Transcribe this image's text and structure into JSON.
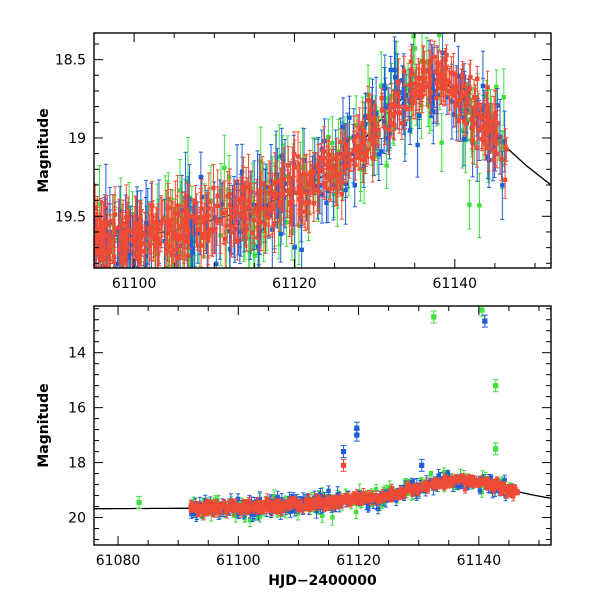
{
  "chart_data": [
    {
      "type": "scatter",
      "panel": "top",
      "ylabel": "Magnitude",
      "xlabel": "",
      "xlim": [
        61095,
        61152
      ],
      "ylim": [
        19.83,
        18.33
      ],
      "y_inverted": true,
      "x_ticks": [
        61100,
        61120,
        61140
      ],
      "x_tick_labels": [
        "61100",
        "61120",
        "61140"
      ],
      "y_ticks": [
        18.5,
        19,
        19.5
      ],
      "y_tick_labels": [
        "18.5",
        "19",
        "19.5"
      ],
      "series_colors": [
        "#1f5fd6",
        "#ef4b36",
        "#3ee03e"
      ],
      "model_curve": {
        "color": "#000000",
        "x": [
          61095,
          61100,
          61105,
          61110,
          61115,
          61120,
          61125,
          61128,
          61131,
          61134,
          61136,
          61138,
          61140,
          61143,
          61146,
          61149,
          61152
        ],
        "y": [
          19.66,
          19.63,
          19.59,
          19.52,
          19.45,
          19.35,
          19.2,
          19.05,
          18.87,
          18.72,
          18.65,
          18.63,
          18.69,
          18.86,
          19.04,
          19.18,
          19.3
        ]
      }
    },
    {
      "type": "scatter",
      "panel": "bottom",
      "ylabel": "Magnitude",
      "xlabel": "HJD−2400000",
      "xlim": [
        61076,
        61152
      ],
      "ylim": [
        21.0,
        12.3
      ],
      "y_inverted": true,
      "x_ticks": [
        61080,
        61100,
        61120,
        61140
      ],
      "x_tick_labels": [
        "61080",
        "61100",
        "61120",
        "61140"
      ],
      "y_ticks": [
        14,
        16,
        18,
        20
      ],
      "y_tick_labels": [
        "14",
        "16",
        "18",
        "20"
      ],
      "series_colors": [
        "#1f5fd6",
        "#ef4b36",
        "#3ee03e"
      ],
      "outliers": [
        {
          "x": 61083.5,
          "y": 19.45,
          "series": 2
        },
        {
          "x": 61117.5,
          "y": 17.6,
          "series": 0
        },
        {
          "x": 61117.5,
          "y": 18.1,
          "series": 1
        },
        {
          "x": 61119.7,
          "y": 17.0,
          "series": 0
        },
        {
          "x": 61119.7,
          "y": 16.75,
          "series": 0
        },
        {
          "x": 61132.5,
          "y": 12.7,
          "series": 2
        },
        {
          "x": 61140.5,
          "y": 12.45,
          "series": 2
        },
        {
          "x": 61141.0,
          "y": 12.85,
          "series": 0
        },
        {
          "x": 61142.8,
          "y": 15.2,
          "series": 2
        },
        {
          "x": 61142.8,
          "y": 17.5,
          "series": 2
        },
        {
          "x": 61130.5,
          "y": 18.1,
          "series": 0
        }
      ],
      "model_curve": {
        "color": "#000000",
        "x": [
          61076,
          61085,
          61095,
          61100,
          61105,
          61110,
          61115,
          61120,
          61125,
          61128,
          61131,
          61134,
          61136,
          61138,
          61140,
          61143,
          61146,
          61149,
          61152
        ],
        "y": [
          19.68,
          19.67,
          19.66,
          19.63,
          19.59,
          19.52,
          19.45,
          19.35,
          19.2,
          19.05,
          18.87,
          18.72,
          18.65,
          18.63,
          18.69,
          18.86,
          19.04,
          19.18,
          19.3
        ]
      }
    }
  ]
}
